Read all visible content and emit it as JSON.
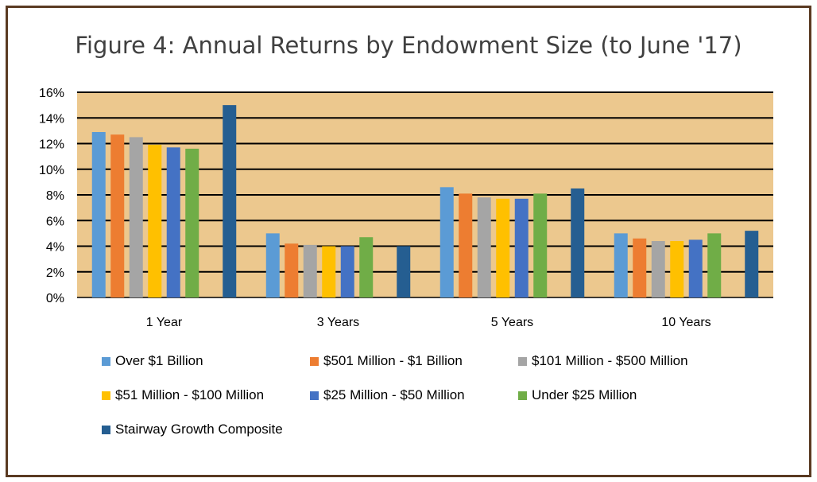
{
  "chart_data": {
    "type": "bar",
    "title": "Figure 4: Annual Returns by Endowment Size (to June '17)",
    "xlabel": "",
    "ylabel": "",
    "categories": [
      "1 Year",
      "3 Years",
      "5 Years",
      "10 Years"
    ],
    "ylim": [
      0,
      16
    ],
    "yticks": [
      "0%",
      "2%",
      "4%",
      "6%",
      "8%",
      "10%",
      "12%",
      "14%",
      "16%"
    ],
    "grid": true,
    "legend_position": "bottom",
    "plot_background": "#ecc88e",
    "series": [
      {
        "name": "Over $1 Billion",
        "color": "#5b9bd5",
        "values": [
          12.9,
          5.0,
          8.6,
          5.0
        ]
      },
      {
        "name": "$501 Million - $1 Billion",
        "color": "#ed7d31",
        "values": [
          12.7,
          4.2,
          8.1,
          4.6
        ]
      },
      {
        "name": "$101 Million - $500 Million",
        "color": "#a5a5a5",
        "values": [
          12.5,
          4.1,
          7.8,
          4.4
        ]
      },
      {
        "name": "$51 Million - $100 Million",
        "color": "#ffc000",
        "values": [
          11.9,
          4.0,
          7.7,
          4.4
        ]
      },
      {
        "name": "$25 Million - $50 Million",
        "color": "#4472c4",
        "values": [
          11.7,
          4.0,
          7.7,
          4.5
        ]
      },
      {
        "name": "Under $25 Million",
        "color": "#70ad47",
        "values": [
          11.6,
          4.7,
          8.1,
          5.0
        ]
      },
      {
        "name": "Stairway Growth Composite",
        "color": "#255e91",
        "values": [
          15.0,
          4.0,
          8.5,
          5.2
        ]
      }
    ]
  }
}
